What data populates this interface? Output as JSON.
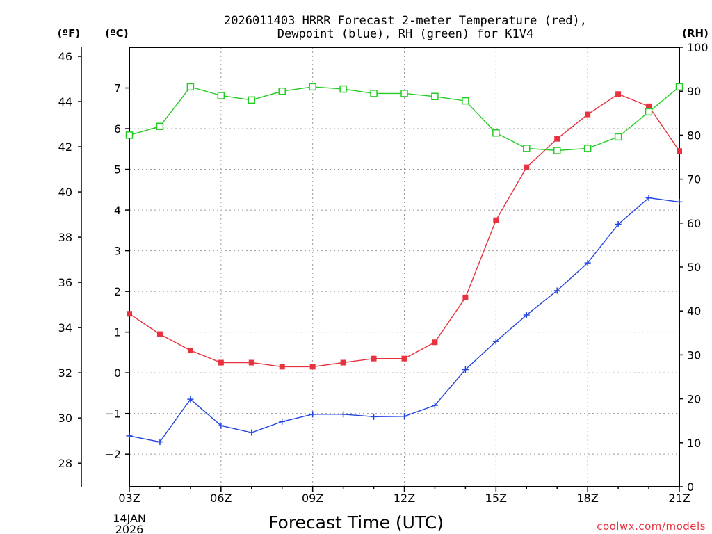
{
  "chart_data": {
    "type": "line",
    "title": "2026011403 HRRR Forecast 2-meter Temperature (red),",
    "subtitle": "Dewpoint (blue), RH (green) for K1V4",
    "xlabel": "Forecast Time (UTC)",
    "x_ticks": [
      "03Z",
      "06Z",
      "09Z",
      "12Z",
      "15Z",
      "18Z",
      "21Z"
    ],
    "x_first_date": "14JAN",
    "x_first_year": "2026",
    "x_hours": [
      3,
      4,
      5,
      6,
      7,
      8,
      9,
      10,
      11,
      12,
      13,
      14,
      15,
      16,
      17,
      18,
      19,
      20,
      21
    ],
    "axes": {
      "fahrenheit": {
        "unit_label": "(ºF)",
        "ylim": [
          26.96,
          46.4
        ],
        "ticks": [
          28,
          30,
          32,
          34,
          36,
          38,
          40,
          42,
          44,
          46
        ]
      },
      "celsius": {
        "unit_label": "(ºC)",
        "ylim": [
          -2.8,
          8.0
        ],
        "ticks": [
          -2,
          -1,
          0,
          1,
          2,
          3,
          4,
          5,
          6,
          7
        ]
      },
      "rh": {
        "unit_label": "(RH)",
        "ylim": [
          0,
          100
        ],
        "ticks": [
          0,
          10,
          20,
          30,
          40,
          50,
          60,
          70,
          80,
          90,
          100
        ]
      }
    },
    "series": [
      {
        "name": "2-meter Temperature",
        "color": "#e8323e",
        "marker": "filled-square",
        "axis": "celsius",
        "values": [
          1.45,
          0.95,
          0.55,
          0.25,
          0.25,
          0.15,
          0.15,
          0.25,
          0.35,
          0.35,
          0.75,
          1.85,
          3.75,
          5.05,
          5.75,
          6.35,
          6.85,
          6.55,
          5.45
        ]
      },
      {
        "name": "Dewpoint",
        "color": "#2244e0",
        "marker": "plus",
        "axis": "celsius",
        "values": [
          -1.55,
          -1.7,
          -0.65,
          -1.3,
          -1.47,
          -1.2,
          -1.02,
          -1.02,
          -1.08,
          -1.07,
          -0.8,
          0.08,
          0.77,
          1.42,
          2.02,
          2.7,
          3.65,
          4.3,
          4.2
        ]
      },
      {
        "name": "RH",
        "color": "#22cc22",
        "marker": "open-square",
        "axis": "rh",
        "values": [
          80,
          82,
          91,
          89,
          88,
          90,
          91,
          90.5,
          89.5,
          89.5,
          88.8,
          87.8,
          80.5,
          77,
          76.5,
          77,
          79.6,
          85.3,
          91
        ]
      }
    ]
  },
  "credit": "coolwx.com/models"
}
